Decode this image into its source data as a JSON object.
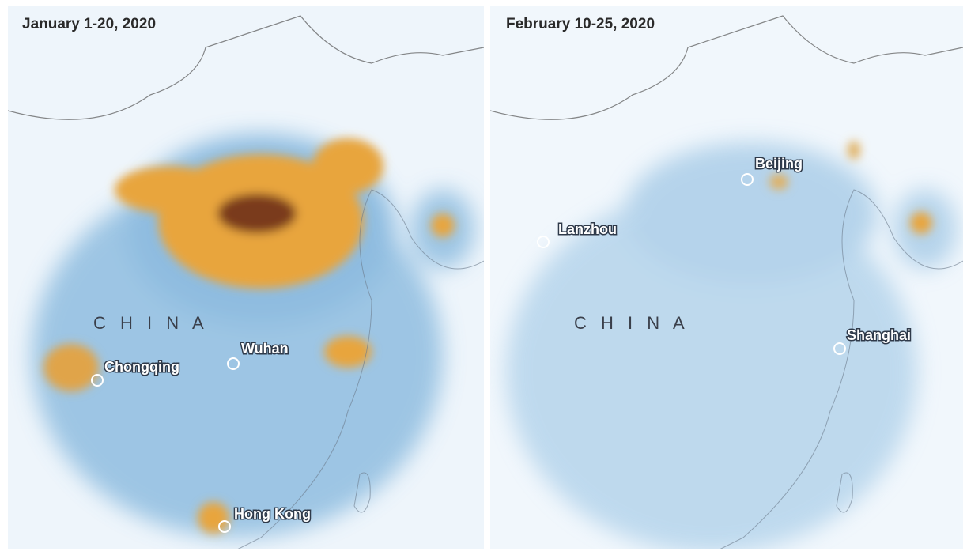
{
  "panels": [
    {
      "title": "January 1-20, 2020",
      "country_label": "C H I N A",
      "cities": [
        {
          "name": "Chongqing"
        },
        {
          "name": "Wuhan"
        },
        {
          "name": "Hong Kong"
        }
      ]
    },
    {
      "title": "February 10-25, 2020",
      "country_label": "C H I N A",
      "cities": [
        {
          "name": "Beijing"
        },
        {
          "name": "Lanzhou"
        },
        {
          "name": "Shanghai"
        }
      ]
    }
  ]
}
